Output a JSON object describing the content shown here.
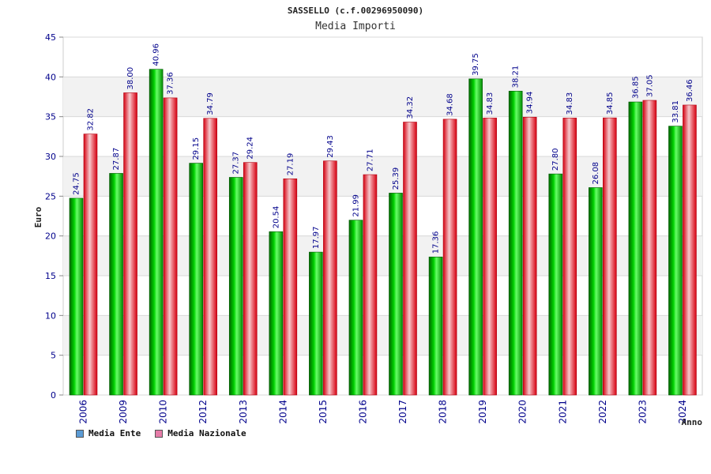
{
  "colors": {
    "ente_swatch": "#5b9bd5",
    "naz_swatch": "#e67ca8",
    "ente_bar": "#00b000",
    "naz_bar": "#e8303a",
    "band": "#f2f2f2"
  },
  "chart_data": {
    "type": "bar",
    "title": "SASSELLO (c.f.00296950090)",
    "subtitle": "Media Importi",
    "xlabel": "Anno",
    "ylabel": "Euro",
    "ylim": [
      0,
      45
    ],
    "yticks": [
      "0",
      "5",
      "10",
      "15",
      "20",
      "25",
      "30",
      "35",
      "40",
      "45"
    ],
    "grid": true,
    "legend_position": "bottom-left",
    "categories": [
      "2006",
      "2009",
      "2010",
      "2012",
      "2013",
      "2014",
      "2015",
      "2016",
      "2017",
      "2018",
      "2019",
      "2020",
      "2021",
      "2022",
      "2023",
      "2024"
    ],
    "series": [
      {
        "name": "Media Ente",
        "values": [
          24.75,
          27.87,
          40.96,
          29.15,
          27.37,
          20.54,
          17.97,
          21.99,
          25.39,
          17.36,
          39.75,
          38.21,
          27.8,
          26.08,
          36.85,
          33.81
        ],
        "labels": [
          "24.75",
          "27.87",
          "40.96",
          "29.15",
          "27.37",
          "20.54",
          "17.97",
          "21.99",
          "25.39",
          "17.36",
          "39.75",
          "38.21",
          "27.80",
          "26.08",
          "36.85",
          "33.81"
        ]
      },
      {
        "name": "Media Nazionale",
        "values": [
          32.82,
          38.0,
          37.36,
          34.79,
          29.24,
          27.19,
          29.43,
          27.71,
          34.32,
          34.68,
          34.83,
          34.94,
          34.83,
          34.85,
          37.05,
          36.46
        ],
        "labels": [
          "32.82",
          "38.00",
          "37.36",
          "34.79",
          "29.24",
          "27.19",
          "29.43",
          "27.71",
          "34.32",
          "34.68",
          "34.83",
          "34.94",
          "34.83",
          "34.85",
          "37.05",
          "36.46"
        ]
      }
    ]
  }
}
